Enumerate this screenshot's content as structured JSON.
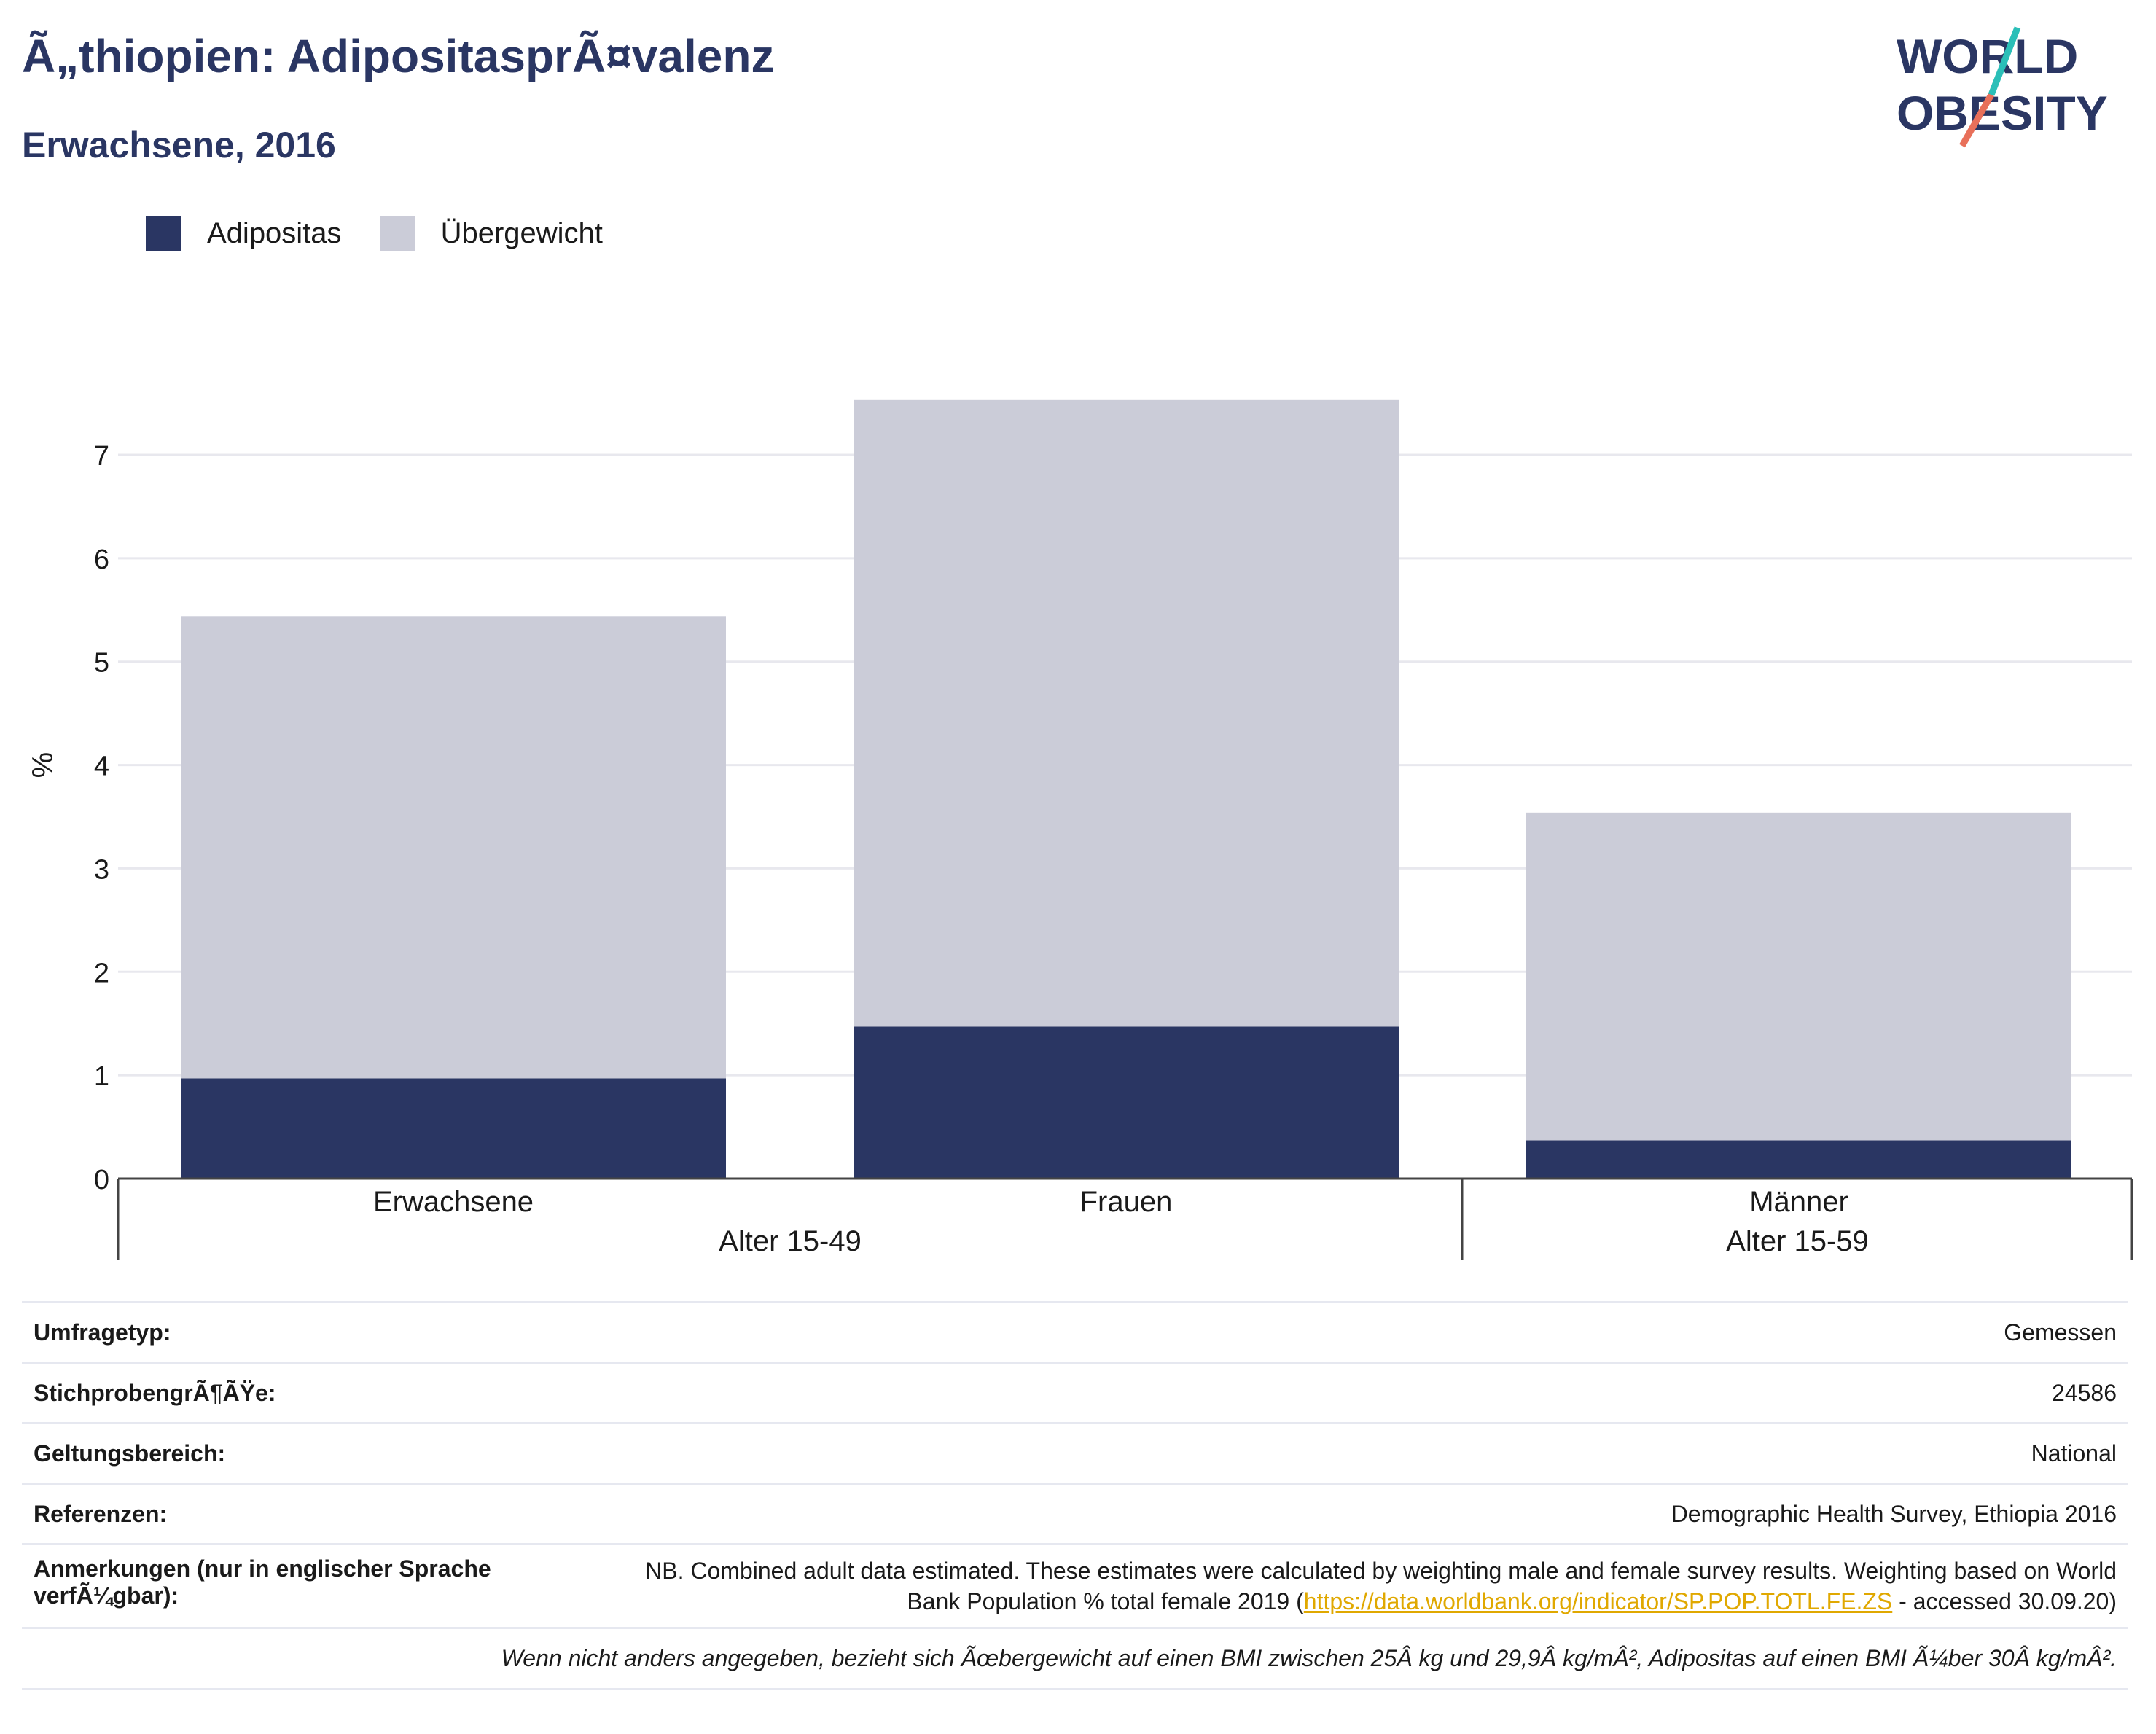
{
  "header": {
    "title": "Ã„thiopien: AdipositasprÃ¤valenz",
    "subtitle": "Erwachsene, 2016"
  },
  "logo": {
    "line1": "WORLD",
    "line2": "OBESITY"
  },
  "colors": {
    "obesity": "#2a3663",
    "overweight": "#cbccd8",
    "title": "#2a3663",
    "link": "#e0a800"
  },
  "chart_data": {
    "type": "bar",
    "stacked": true,
    "categories": [
      "Erwachsene",
      "Frauen",
      "Männer"
    ],
    "groups": [
      {
        "label": "Alter 15-49",
        "categories": [
          "Erwachsene",
          "Frauen"
        ]
      },
      {
        "label": "Alter 15-59",
        "categories": [
          "Männer"
        ]
      }
    ],
    "series": [
      {
        "name": "Adipositas",
        "values": [
          0.97,
          1.47,
          0.37
        ]
      },
      {
        "name": "Übergewicht",
        "values": [
          4.47,
          6.06,
          3.17
        ]
      }
    ],
    "ylabel": "%",
    "ylim": [
      0,
      7.6
    ],
    "yticks": [
      0,
      1,
      2,
      3,
      4,
      5,
      6,
      7
    ],
    "grid": true,
    "legend_position": "top-left"
  },
  "info": {
    "rows": [
      {
        "label": "Umfragetyp:",
        "value": "Gemessen"
      },
      {
        "label": "StichprobengrÃ¶ÃŸe:",
        "value": "24586"
      },
      {
        "label": "Geltungsbereich:",
        "value": "National"
      },
      {
        "label": "Referenzen:",
        "value": "Demographic Health Survey, Ethiopia 2016"
      }
    ],
    "notes_label": "Anmerkungen (nur in englischer Sprache verfÃ¼gbar):",
    "notes_text_before": "NB. Combined adult data estimated. These estimates were calculated by weighting male and female survey results. Weighting based on World Bank Population % total female 2019 (",
    "notes_link": "https://data.worldbank.org/indicator/SP.POP.TOTL.FE.ZS",
    "notes_text_after": " - accessed 30.09.20)",
    "footnote": "Wenn nicht anders angegeben, bezieht sich Ãœbergewicht auf einen BMI zwischen 25Â kg und 29,9Â kg/mÂ², Adipositas auf einen BMI Ã¼ber 30Â kg/mÂ²."
  }
}
